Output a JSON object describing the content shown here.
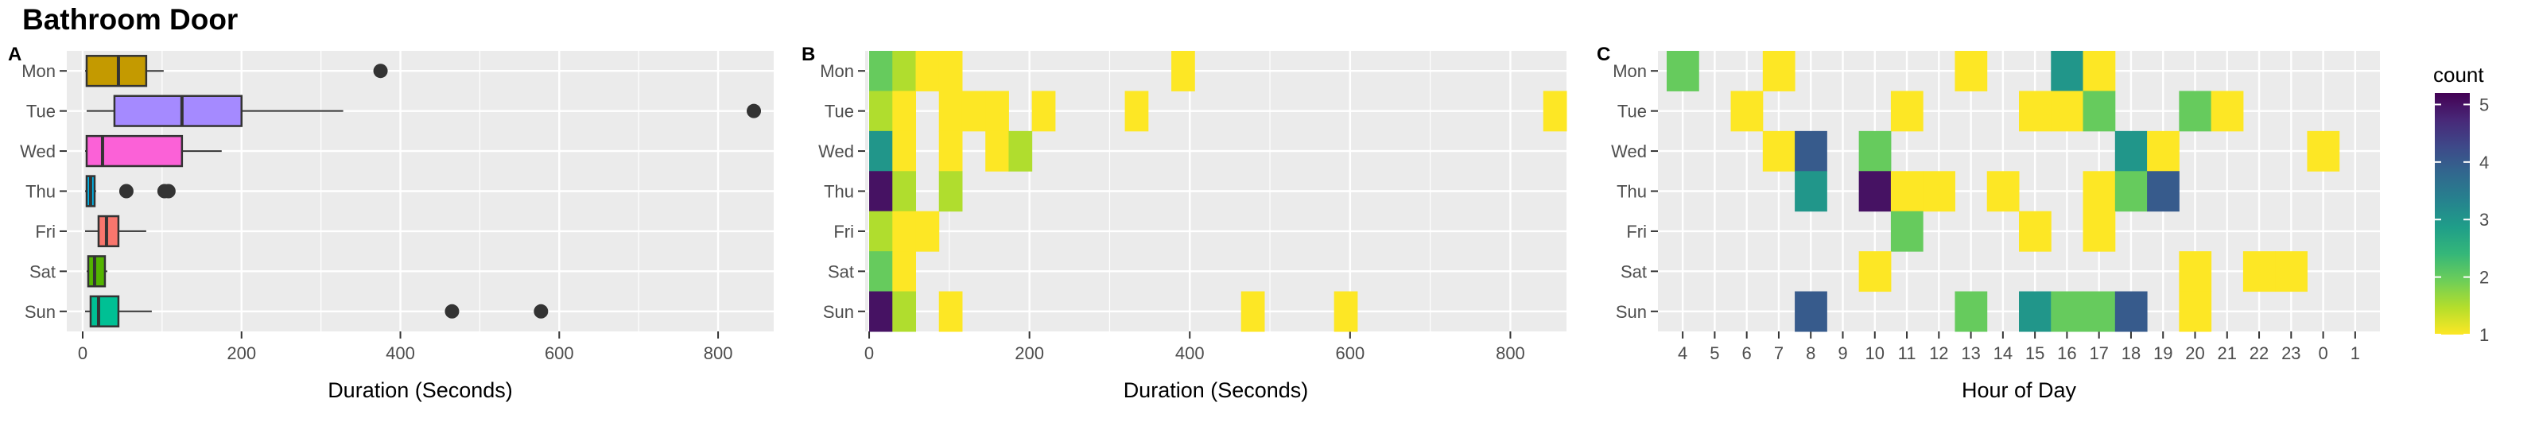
{
  "title": "Bathroom Door",
  "days": [
    "Mon",
    "Tue",
    "Wed",
    "Thu",
    "Fri",
    "Sat",
    "Sun"
  ],
  "colors": {
    "panel_bg": "#ebebeb",
    "grid": "#ffffff",
    "outlier": "#333333",
    "text_dark": "#000000",
    "text_axis": "#4d4d4d",
    "day_fill": {
      "Mon": "#c49a00",
      "Tue": "#a58aff",
      "Wed": "#fb61d7",
      "Thu": "#00b6eb",
      "Fri": "#f8766d",
      "Sat": "#53b400",
      "Sun": "#00c094"
    }
  },
  "chart_data": [
    {
      "panel": "A",
      "type": "box",
      "xlabel": "Duration (Seconds)",
      "xlim": [
        -20,
        870
      ],
      "x_ticks": [
        0,
        200,
        400,
        600,
        800
      ],
      "categories": [
        "Mon",
        "Tue",
        "Wed",
        "Thu",
        "Fri",
        "Sat",
        "Sun"
      ],
      "boxes": [
        {
          "day": "Mon",
          "whisker_low": 3,
          "q1": 5,
          "median": 45,
          "q3": 80,
          "whisker_high": 102,
          "outliers": [
            375
          ]
        },
        {
          "day": "Tue",
          "whisker_low": 5,
          "q1": 40,
          "median": 125,
          "q3": 200,
          "whisker_high": 328,
          "outliers": [
            845
          ]
        },
        {
          "day": "Wed",
          "whisker_low": 3,
          "q1": 5,
          "median": 25,
          "q3": 125,
          "whisker_high": 175,
          "outliers": []
        },
        {
          "day": "Thu",
          "whisker_low": 3,
          "q1": 5,
          "median": 10,
          "q3": 15,
          "whisker_high": 17,
          "outliers": [
            55,
            103,
            108
          ]
        },
        {
          "day": "Fri",
          "whisker_low": 3,
          "q1": 20,
          "median": 30,
          "q3": 45,
          "whisker_high": 80,
          "outliers": []
        },
        {
          "day": "Sat",
          "whisker_low": 5,
          "q1": 7,
          "median": 15,
          "q3": 28,
          "whisker_high": 31,
          "outliers": []
        },
        {
          "day": "Sun",
          "whisker_low": 3,
          "q1": 10,
          "median": 20,
          "q3": 45,
          "whisker_high": 87,
          "outliers": [
            465,
            577
          ]
        }
      ]
    },
    {
      "panel": "B",
      "type": "heatmap",
      "xlabel": "Duration (Seconds)",
      "legend_title": "count",
      "xlim": [
        -5,
        870
      ],
      "x_ticks": [
        0,
        200,
        400,
        600,
        800
      ],
      "bin_width": 29,
      "categories": [
        "Mon",
        "Tue",
        "Wed",
        "Thu",
        "Fri",
        "Sat",
        "Sun"
      ],
      "cells": [
        {
          "day": "Mon",
          "x": 0,
          "count": 2
        },
        {
          "day": "Mon",
          "x": 29,
          "count": 1.5
        },
        {
          "day": "Mon",
          "x": 58,
          "count": 1
        },
        {
          "day": "Mon",
          "x": 87,
          "count": 1
        },
        {
          "day": "Mon",
          "x": 377,
          "count": 1
        },
        {
          "day": "Tue",
          "x": 0,
          "count": 1.5
        },
        {
          "day": "Tue",
          "x": 29,
          "count": 1
        },
        {
          "day": "Tue",
          "x": 87,
          "count": 1
        },
        {
          "day": "Tue",
          "x": 116,
          "count": 1
        },
        {
          "day": "Tue",
          "x": 145,
          "count": 1
        },
        {
          "day": "Tue",
          "x": 203,
          "count": 1
        },
        {
          "day": "Tue",
          "x": 319,
          "count": 1
        },
        {
          "day": "Tue",
          "x": 841,
          "count": 1
        },
        {
          "day": "Wed",
          "x": 0,
          "count": 3
        },
        {
          "day": "Wed",
          "x": 29,
          "count": 1
        },
        {
          "day": "Wed",
          "x": 87,
          "count": 1
        },
        {
          "day": "Wed",
          "x": 145,
          "count": 1
        },
        {
          "day": "Wed",
          "x": 174,
          "count": 1.5
        },
        {
          "day": "Thu",
          "x": 0,
          "count": 5
        },
        {
          "day": "Thu",
          "x": 29,
          "count": 1.5
        },
        {
          "day": "Thu",
          "x": 87,
          "count": 1.5
        },
        {
          "day": "Fri",
          "x": 0,
          "count": 1.5
        },
        {
          "day": "Fri",
          "x": 29,
          "count": 1
        },
        {
          "day": "Fri",
          "x": 58,
          "count": 1
        },
        {
          "day": "Sat",
          "x": 0,
          "count": 2
        },
        {
          "day": "Sat",
          "x": 29,
          "count": 1
        },
        {
          "day": "Sun",
          "x": 0,
          "count": 5
        },
        {
          "day": "Sun",
          "x": 29,
          "count": 1.5
        },
        {
          "day": "Sun",
          "x": 87,
          "count": 1
        },
        {
          "day": "Sun",
          "x": 464,
          "count": 1
        },
        {
          "day": "Sun",
          "x": 580,
          "count": 1
        }
      ]
    },
    {
      "panel": "C",
      "type": "heatmap",
      "xlabel": "Hour of Day",
      "legend_title": "count",
      "hours": [
        4,
        5,
        6,
        7,
        8,
        9,
        10,
        11,
        12,
        13,
        14,
        15,
        16,
        17,
        18,
        19,
        20,
        21,
        22,
        23,
        0,
        1
      ],
      "categories": [
        "Mon",
        "Tue",
        "Wed",
        "Thu",
        "Fri",
        "Sat",
        "Sun"
      ],
      "cells": [
        {
          "day": "Mon",
          "hour": 4,
          "count": 2
        },
        {
          "day": "Mon",
          "hour": 7,
          "count": 1
        },
        {
          "day": "Mon",
          "hour": 13,
          "count": 1
        },
        {
          "day": "Mon",
          "hour": 16,
          "count": 3
        },
        {
          "day": "Mon",
          "hour": 17,
          "count": 1
        },
        {
          "day": "Tue",
          "hour": 6,
          "count": 1
        },
        {
          "day": "Tue",
          "hour": 11,
          "count": 1
        },
        {
          "day": "Tue",
          "hour": 15,
          "count": 1
        },
        {
          "day": "Tue",
          "hour": 16,
          "count": 1
        },
        {
          "day": "Tue",
          "hour": 17,
          "count": 2
        },
        {
          "day": "Tue",
          "hour": 20,
          "count": 2
        },
        {
          "day": "Tue",
          "hour": 21,
          "count": 1
        },
        {
          "day": "Wed",
          "hour": 7,
          "count": 1
        },
        {
          "day": "Wed",
          "hour": 8,
          "count": 4
        },
        {
          "day": "Wed",
          "hour": 10,
          "count": 2
        },
        {
          "day": "Wed",
          "hour": 18,
          "count": 3
        },
        {
          "day": "Wed",
          "hour": 19,
          "count": 1
        },
        {
          "day": "Wed",
          "hour": 0,
          "count": 1
        },
        {
          "day": "Thu",
          "hour": 8,
          "count": 3
        },
        {
          "day": "Thu",
          "hour": 10,
          "count": 5
        },
        {
          "day": "Thu",
          "hour": 11,
          "count": 1
        },
        {
          "day": "Thu",
          "hour": 12,
          "count": 1
        },
        {
          "day": "Thu",
          "hour": 14,
          "count": 1
        },
        {
          "day": "Thu",
          "hour": 17,
          "count": 1
        },
        {
          "day": "Thu",
          "hour": 18,
          "count": 2
        },
        {
          "day": "Thu",
          "hour": 19,
          "count": 4
        },
        {
          "day": "Fri",
          "hour": 11,
          "count": 2
        },
        {
          "day": "Fri",
          "hour": 15,
          "count": 1
        },
        {
          "day": "Fri",
          "hour": 17,
          "count": 1
        },
        {
          "day": "Sat",
          "hour": 10,
          "count": 1
        },
        {
          "day": "Sat",
          "hour": 20,
          "count": 1
        },
        {
          "day": "Sat",
          "hour": 22,
          "count": 1
        },
        {
          "day": "Sat",
          "hour": 23,
          "count": 1
        },
        {
          "day": "Sun",
          "hour": 8,
          "count": 4
        },
        {
          "day": "Sun",
          "hour": 13,
          "count": 2
        },
        {
          "day": "Sun",
          "hour": 15,
          "count": 3
        },
        {
          "day": "Sun",
          "hour": 16,
          "count": 2
        },
        {
          "day": "Sun",
          "hour": 17,
          "count": 2
        },
        {
          "day": "Sun",
          "hour": 18,
          "count": 4
        },
        {
          "day": "Sun",
          "hour": 20,
          "count": 1
        }
      ]
    }
  ],
  "legend": {
    "title": "count",
    "min": 1,
    "max": 5.2,
    "ticks": [
      1,
      2,
      3,
      4,
      5
    ]
  }
}
